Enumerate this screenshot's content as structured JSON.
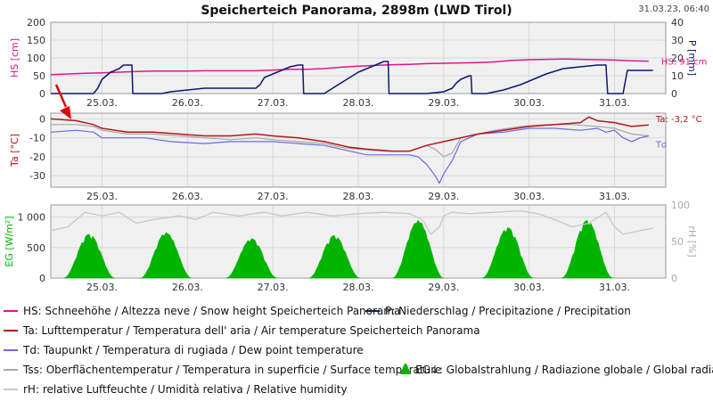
{
  "header": {
    "title": "Speicherteich Panorama, 2898m (LWD Tirol)",
    "timestamp": "31.03.23, 06:40"
  },
  "colors": {
    "hs": "#e0158c",
    "p": "#0a1a6e",
    "ta": "#b01818",
    "td": "#6a6ae6",
    "tss": "#a8a8a8",
    "eg": "#00b400",
    "rh": "#c8c8c8",
    "panel_bg": "#f0f0f0",
    "grid": "#d8d8d8"
  },
  "chart_data": [
    {
      "type": "line",
      "panel": "snow-precip",
      "x_categories": [
        "25.03.",
        "26.03.",
        "27.03.",
        "28.03.",
        "29.03.",
        "30.03.",
        "31.03."
      ],
      "xlim_days": [
        24.4,
        31.6
      ],
      "left_axis": {
        "label": "HS [cm]",
        "range": [
          0,
          200
        ],
        "ticks": [
          "0",
          "50",
          "100",
          "150",
          "200"
        ]
      },
      "right_axis": {
        "label": "P [mm]",
        "range": [
          0,
          40
        ],
        "ticks": [
          "0",
          "10",
          "20",
          "30",
          "40"
        ]
      },
      "current_label": "HS: 91 cm",
      "grid": true,
      "series": [
        {
          "key": "hs",
          "axis": "left",
          "points": [
            [
              24.4,
              53
            ],
            [
              24.6,
              55
            ],
            [
              24.8,
              57
            ],
            [
              25.0,
              58
            ],
            [
              25.2,
              60
            ],
            [
              25.4,
              62
            ],
            [
              25.6,
              63
            ],
            [
              25.8,
              63
            ],
            [
              26.0,
              63
            ],
            [
              26.2,
              64
            ],
            [
              26.4,
              64
            ],
            [
              26.6,
              64
            ],
            [
              26.8,
              64
            ],
            [
              27.0,
              66
            ],
            [
              27.2,
              68
            ],
            [
              27.4,
              68
            ],
            [
              27.6,
              70
            ],
            [
              27.8,
              74
            ],
            [
              28.0,
              77
            ],
            [
              28.2,
              79
            ],
            [
              28.4,
              81
            ],
            [
              28.6,
              82
            ],
            [
              28.8,
              84
            ],
            [
              29.0,
              85
            ],
            [
              29.2,
              86
            ],
            [
              29.4,
              87
            ],
            [
              29.6,
              89
            ],
            [
              29.8,
              93
            ],
            [
              30.0,
              95
            ],
            [
              30.2,
              96
            ],
            [
              30.4,
              97
            ],
            [
              30.6,
              96
            ],
            [
              30.8,
              95
            ],
            [
              31.0,
              94
            ],
            [
              31.2,
              92
            ],
            [
              31.4,
              91
            ]
          ]
        },
        {
          "key": "p",
          "axis": "right",
          "points": [
            [
              24.4,
              0
            ],
            [
              24.9,
              0
            ],
            [
              24.95,
              3
            ],
            [
              25.0,
              8
            ],
            [
              25.1,
              12
            ],
            [
              25.2,
              14
            ],
            [
              25.25,
              16
            ],
            [
              25.35,
              16
            ],
            [
              25.36,
              0
            ],
            [
              25.7,
              0
            ],
            [
              25.8,
              1
            ],
            [
              26.0,
              2
            ],
            [
              26.2,
              3
            ],
            [
              26.5,
              3
            ],
            [
              26.8,
              3
            ],
            [
              26.85,
              5
            ],
            [
              26.9,
              9
            ],
            [
              27.0,
              11
            ],
            [
              27.1,
              13
            ],
            [
              27.2,
              15
            ],
            [
              27.3,
              16
            ],
            [
              27.35,
              16
            ],
            [
              27.36,
              0
            ],
            [
              27.6,
              0
            ],
            [
              27.7,
              3
            ],
            [
              27.8,
              6
            ],
            [
              27.9,
              9
            ],
            [
              28.0,
              12
            ],
            [
              28.1,
              14
            ],
            [
              28.2,
              16
            ],
            [
              28.3,
              18
            ],
            [
              28.35,
              18
            ],
            [
              28.36,
              0
            ],
            [
              28.8,
              0
            ],
            [
              29.0,
              1
            ],
            [
              29.1,
              3
            ],
            [
              29.15,
              6
            ],
            [
              29.2,
              8
            ],
            [
              29.25,
              9
            ],
            [
              29.3,
              10
            ],
            [
              29.32,
              10
            ],
            [
              29.33,
              0
            ],
            [
              29.5,
              0
            ],
            [
              29.7,
              2
            ],
            [
              29.9,
              5
            ],
            [
              30.0,
              7
            ],
            [
              30.2,
              11
            ],
            [
              30.4,
              14
            ],
            [
              30.6,
              15
            ],
            [
              30.8,
              16
            ],
            [
              30.9,
              16
            ],
            [
              30.92,
              0
            ],
            [
              31.1,
              0
            ],
            [
              31.15,
              13
            ],
            [
              31.3,
              13
            ],
            [
              31.45,
              13
            ]
          ]
        }
      ]
    },
    {
      "type": "line",
      "panel": "temperature",
      "x_categories": [
        "25.03.",
        "26.03.",
        "27.03.",
        "28.03.",
        "29.03.",
        "30.03.",
        "31.03."
      ],
      "xlim_days": [
        24.4,
        31.6
      ],
      "left_axis": {
        "label": "Ta [°C]",
        "range": [
          -36,
          3
        ],
        "ticks": [
          "0",
          "-10",
          "-20",
          "-30"
        ]
      },
      "current_label": "Ta: -3,2 °C",
      "series_label_td": "Td",
      "grid": true,
      "series": [
        {
          "key": "tss",
          "points": [
            [
              24.4,
              -3
            ],
            [
              24.7,
              -3
            ],
            [
              24.9,
              -4
            ],
            [
              25.0,
              -6
            ],
            [
              25.3,
              -8
            ],
            [
              25.6,
              -8
            ],
            [
              25.9,
              -9
            ],
            [
              26.2,
              -10
            ],
            [
              26.5,
              -11
            ],
            [
              26.8,
              -10
            ],
            [
              27.0,
              -11
            ],
            [
              27.3,
              -12
            ],
            [
              27.6,
              -13
            ],
            [
              27.8,
              -15
            ],
            [
              28.0,
              -16
            ],
            [
              28.3,
              -17
            ],
            [
              28.6,
              -17
            ],
            [
              28.8,
              -14
            ],
            [
              28.9,
              -16
            ],
            [
              29.0,
              -20
            ],
            [
              29.1,
              -18
            ],
            [
              29.2,
              -10
            ],
            [
              29.4,
              -8
            ],
            [
              29.6,
              -6
            ],
            [
              29.9,
              -4
            ],
            [
              30.2,
              -3
            ],
            [
              30.5,
              -3
            ],
            [
              30.8,
              -4
            ],
            [
              31.0,
              -5
            ],
            [
              31.2,
              -8
            ],
            [
              31.4,
              -9
            ]
          ]
        },
        {
          "key": "td",
          "points": [
            [
              24.4,
              -7
            ],
            [
              24.7,
              -6
            ],
            [
              24.9,
              -7
            ],
            [
              25.0,
              -10
            ],
            [
              25.3,
              -10
            ],
            [
              25.5,
              -10
            ],
            [
              25.8,
              -12
            ],
            [
              26.2,
              -13
            ],
            [
              26.5,
              -12
            ],
            [
              26.8,
              -12
            ],
            [
              27.0,
              -12
            ],
            [
              27.3,
              -13
            ],
            [
              27.6,
              -14
            ],
            [
              27.9,
              -17
            ],
            [
              28.1,
              -19
            ],
            [
              28.4,
              -19
            ],
            [
              28.6,
              -19
            ],
            [
              28.7,
              -20
            ],
            [
              28.8,
              -24
            ],
            [
              28.9,
              -30
            ],
            [
              28.95,
              -34
            ],
            [
              29.0,
              -29
            ],
            [
              29.1,
              -22
            ],
            [
              29.2,
              -12
            ],
            [
              29.4,
              -8
            ],
            [
              29.7,
              -7
            ],
            [
              30.0,
              -5
            ],
            [
              30.3,
              -5
            ],
            [
              30.6,
              -6
            ],
            [
              30.8,
              -5
            ],
            [
              30.9,
              -7
            ],
            [
              31.0,
              -6
            ],
            [
              31.1,
              -10
            ],
            [
              31.2,
              -12
            ],
            [
              31.3,
              -10
            ],
            [
              31.4,
              -9
            ]
          ]
        },
        {
          "key": "ta",
          "points": [
            [
              24.4,
              0
            ],
            [
              24.7,
              -1
            ],
            [
              24.9,
              -3
            ],
            [
              25.0,
              -5
            ],
            [
              25.3,
              -7
            ],
            [
              25.6,
              -7
            ],
            [
              25.9,
              -8
            ],
            [
              26.2,
              -9
            ],
            [
              26.5,
              -9
            ],
            [
              26.8,
              -8
            ],
            [
              27.0,
              -9
            ],
            [
              27.3,
              -10
            ],
            [
              27.6,
              -12
            ],
            [
              27.9,
              -15
            ],
            [
              28.1,
              -16
            ],
            [
              28.4,
              -17
            ],
            [
              28.6,
              -17
            ],
            [
              28.8,
              -14
            ],
            [
              29.0,
              -12
            ],
            [
              29.2,
              -10
            ],
            [
              29.4,
              -8
            ],
            [
              29.7,
              -6
            ],
            [
              30.0,
              -4
            ],
            [
              30.3,
              -3
            ],
            [
              30.6,
              -2
            ],
            [
              30.7,
              1
            ],
            [
              30.8,
              -1
            ],
            [
              31.0,
              -2
            ],
            [
              31.2,
              -4
            ],
            [
              31.4,
              -3.2
            ]
          ]
        }
      ]
    },
    {
      "type": "area",
      "panel": "radiation-humidity",
      "x_categories": [
        "25.03.",
        "26.03.",
        "27.03.",
        "28.03.",
        "29.03.",
        "30.03.",
        "31.03."
      ],
      "xlim_days": [
        24.4,
        31.6
      ],
      "left_axis": {
        "label": "EG [W/m²]",
        "range": [
          0,
          1200
        ],
        "ticks": [
          "0",
          "500",
          "1 000"
        ]
      },
      "right_axis": {
        "label": "rH [%]",
        "range": [
          0,
          100
        ],
        "ticks": [
          "0",
          "50",
          "100"
        ]
      },
      "grid": true,
      "series": [
        {
          "key": "eg",
          "daily_peaks": [
            [
              24.85,
              720
            ],
            [
              25.75,
              750
            ],
            [
              26.75,
              650
            ],
            [
              27.72,
              700
            ],
            [
              28.7,
              950
            ],
            [
              29.75,
              830
            ],
            [
              30.68,
              950
            ]
          ]
        },
        {
          "key": "rh",
          "points": [
            [
              24.4,
              65
            ],
            [
              24.6,
              70
            ],
            [
              24.8,
              90
            ],
            [
              25.0,
              85
            ],
            [
              25.2,
              90
            ],
            [
              25.4,
              75
            ],
            [
              25.6,
              80
            ],
            [
              25.9,
              85
            ],
            [
              26.1,
              80
            ],
            [
              26.3,
              90
            ],
            [
              26.6,
              85
            ],
            [
              26.9,
              90
            ],
            [
              27.1,
              85
            ],
            [
              27.4,
              90
            ],
            [
              27.7,
              85
            ],
            [
              28.0,
              88
            ],
            [
              28.3,
              90
            ],
            [
              28.6,
              88
            ],
            [
              28.75,
              80
            ],
            [
              28.85,
              60
            ],
            [
              28.95,
              70
            ],
            [
              29.0,
              85
            ],
            [
              29.1,
              90
            ],
            [
              29.3,
              88
            ],
            [
              29.6,
              90
            ],
            [
              29.9,
              92
            ],
            [
              30.1,
              88
            ],
            [
              30.3,
              80
            ],
            [
              30.5,
              70
            ],
            [
              30.7,
              75
            ],
            [
              30.9,
              90
            ],
            [
              31.0,
              70
            ],
            [
              31.1,
              60
            ],
            [
              31.3,
              65
            ],
            [
              31.45,
              68
            ]
          ]
        }
      ]
    }
  ],
  "legend": [
    {
      "key": "hs",
      "text": "HS: Schneehöhe / Altezza neve / Snow height  Speicherteich Panorama"
    },
    {
      "key": "p",
      "text": "P: Niederschlag / Precipitazione / Precipitation"
    },
    {
      "key": "ta",
      "text": "Ta: Lufttemperatur / Temperatura dell' aria / Air temperature  Speicherteich Panorama"
    },
    {
      "key": "td",
      "text": "Td: Taupunkt / Temperatura di rugiada / Dew point temperature"
    },
    {
      "key": "tss",
      "text": "Tss: Oberflächentemperatur / Temperatura in superficie / Surface temperature"
    },
    {
      "key": "eg",
      "text": "EG↓: Globalstrahlung / Radiazione globale / Global radiation"
    },
    {
      "key": "rh",
      "text": "rH: relative Luftfeuchte / Umidità relativa / Relative humidity"
    }
  ]
}
